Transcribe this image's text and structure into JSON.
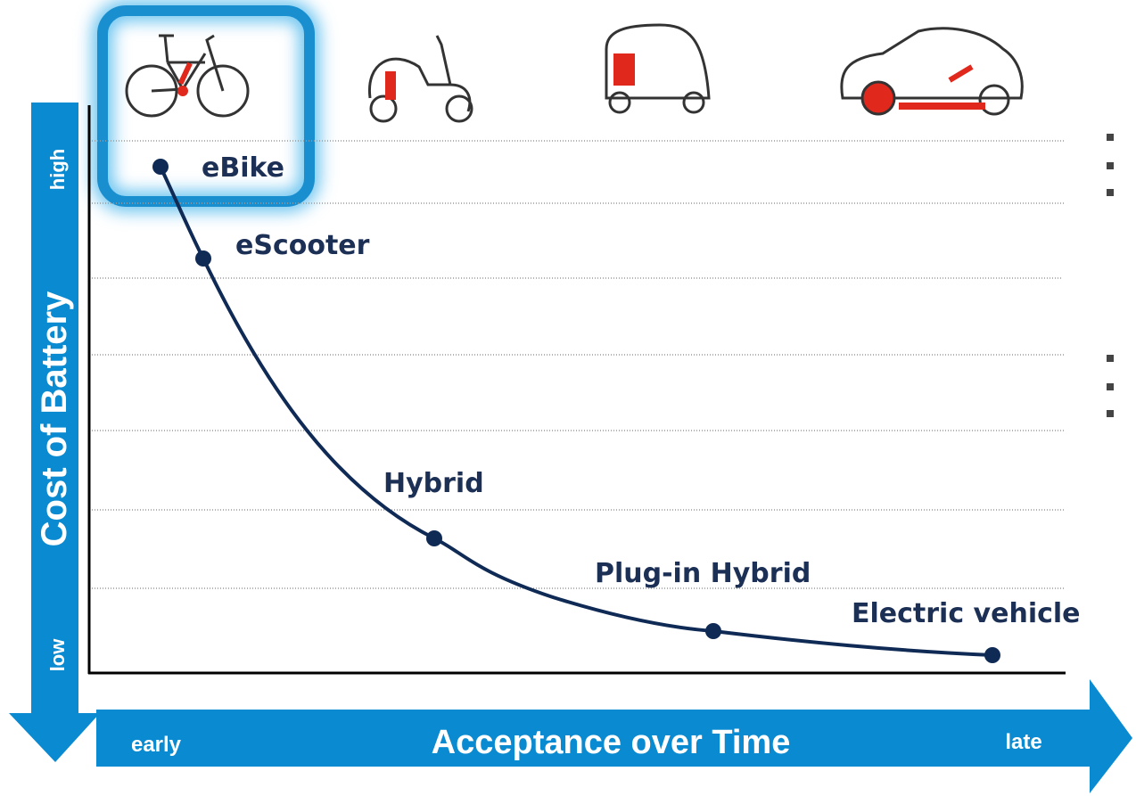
{
  "axes": {
    "y_high": "high",
    "y_low": "low",
    "y_title": "Cost of Battery",
    "x_early": "early",
    "x_title": "Acceptance over Time",
    "x_late": "late"
  },
  "nodes": [
    {
      "label": "eBike"
    },
    {
      "label": "eScooter"
    },
    {
      "label": "Hybrid"
    },
    {
      "label": "Plug-in Hybrid"
    },
    {
      "label": "Electric vehicle"
    }
  ]
}
